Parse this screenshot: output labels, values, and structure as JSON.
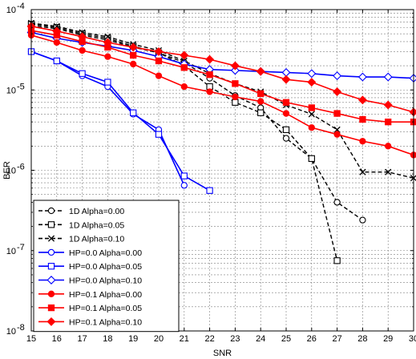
{
  "chart_data": {
    "type": "line",
    "title": "",
    "xlabel": "SNR",
    "ylabel": "BER",
    "xlim": [
      15,
      30
    ],
    "ylim": [
      1e-08,
      0.0001
    ],
    "yscale": "log",
    "xticks": [
      15,
      16,
      17,
      18,
      19,
      20,
      21,
      22,
      23,
      24,
      25,
      26,
      27,
      28,
      29,
      30
    ],
    "yticks": [
      {
        "value": 1e-08,
        "label": "10",
        "exp": "-8"
      },
      {
        "value": 1e-07,
        "label": "10",
        "exp": "-7"
      },
      {
        "value": 1e-06,
        "label": "10",
        "exp": "-6"
      },
      {
        "value": 1e-05,
        "label": "10",
        "exp": "-5"
      },
      {
        "value": 0.0001,
        "label": "10",
        "exp": "-4"
      }
    ],
    "grid": true,
    "legend_position": "bottom-left",
    "series": [
      {
        "name": "1D Alpha=0.00",
        "color": "#000000",
        "dash": true,
        "marker": "circle",
        "filled": false,
        "x": [
          15,
          16,
          17,
          18,
          19,
          20,
          21,
          22,
          23,
          24,
          25,
          26,
          27,
          28
        ],
        "y": [
          6.3e-05,
          5.8e-05,
          4.8e-05,
          4.2e-05,
          3.4e-05,
          2.9e-05,
          2.2e-05,
          1.4e-05,
          8.5e-06,
          6e-06,
          2.5e-06,
          1.4e-06,
          4e-07,
          2.4e-07
        ]
      },
      {
        "name": "1D Alpha=0.05",
        "color": "#000000",
        "dash": true,
        "marker": "square",
        "filled": false,
        "x": [
          15,
          16,
          17,
          18,
          19,
          20,
          21,
          22,
          23,
          24,
          25,
          26,
          27
        ],
        "y": [
          6.6e-05,
          6e-05,
          5e-05,
          4.4e-05,
          3.5e-05,
          2.9e-05,
          2e-05,
          1.1e-05,
          7e-06,
          5.2e-06,
          3.2e-06,
          1.4e-06,
          7.5e-08
        ]
      },
      {
        "name": "1D Alpha=0.10",
        "color": "#000000",
        "dash": true,
        "marker": "x",
        "filled": false,
        "x": [
          15,
          16,
          17,
          18,
          19,
          20,
          21,
          22,
          23,
          24,
          25,
          26,
          27,
          28,
          29,
          30
        ],
        "y": [
          6.8e-05,
          6.2e-05,
          5.2e-05,
          4.6e-05,
          3.7e-05,
          3.1e-05,
          2.3e-05,
          1.6e-05,
          1.2e-05,
          9.5e-06,
          6.5e-06,
          5e-06,
          3.2e-06,
          9.5e-07,
          9.5e-07,
          8e-07
        ]
      },
      {
        "name": "HP=0.0 Alpha=0.00",
        "color": "#0000ff",
        "dash": false,
        "marker": "circle",
        "filled": false,
        "x": [
          15,
          16,
          17,
          18,
          19,
          20,
          21
        ],
        "y": [
          3e-05,
          2.3e-05,
          1.5e-05,
          1.1e-05,
          5e-06,
          3.2e-06,
          6.5e-07
        ]
      },
      {
        "name": "HP=0.0 Alpha=0.05",
        "color": "#0000ff",
        "dash": false,
        "marker": "square",
        "filled": false,
        "x": [
          15,
          16,
          17,
          18,
          19,
          20,
          21,
          22
        ],
        "y": [
          3e-05,
          2.3e-05,
          1.6e-05,
          1.25e-05,
          5.2e-06,
          2.8e-06,
          8.5e-07,
          5.6e-07
        ]
      },
      {
        "name": "HP=0.0 Alpha=0.10",
        "color": "#0000ff",
        "dash": false,
        "marker": "diamond",
        "filled": false,
        "x": [
          15,
          16,
          17,
          18,
          19,
          20,
          21,
          22,
          23,
          24,
          25,
          26,
          27,
          28,
          29,
          30
        ],
        "y": [
          5.2e-05,
          4.4e-05,
          3.9e-05,
          3.5e-05,
          3.1e-05,
          2.6e-05,
          2.1e-05,
          1.8e-05,
          1.75e-05,
          1.7e-05,
          1.65e-05,
          1.6e-05,
          1.5e-05,
          1.45e-05,
          1.45e-05,
          1.4e-05
        ]
      },
      {
        "name": "HP=0.1 Alpha=0.00",
        "color": "#ff0000",
        "dash": false,
        "marker": "circle",
        "filled": true,
        "x": [
          15,
          16,
          17,
          18,
          19,
          20,
          21,
          22,
          23,
          24,
          25,
          26,
          27,
          28,
          29,
          30
        ],
        "y": [
          4.8e-05,
          3.9e-05,
          3.1e-05,
          2.6e-05,
          2.1e-05,
          1.5e-05,
          1.1e-05,
          9.5e-06,
          8.2e-06,
          7.2e-06,
          5.1e-06,
          3.4e-06,
          2.8e-06,
          2.3e-06,
          2e-06,
          1.55e-06
        ]
      },
      {
        "name": "HP=0.1 Alpha=0.05",
        "color": "#ff0000",
        "dash": false,
        "marker": "square",
        "filled": true,
        "x": [
          15,
          16,
          17,
          18,
          19,
          20,
          21,
          22,
          23,
          24,
          25,
          26,
          27,
          28,
          29,
          30
        ],
        "y": [
          5.5e-05,
          4.8e-05,
          4e-05,
          3.4e-05,
          2.7e-05,
          2.3e-05,
          1.9e-05,
          1.55e-05,
          1.2e-05,
          9e-06,
          7e-06,
          6e-06,
          5.1e-06,
          4.3e-06,
          4e-06,
          4e-06
        ]
      },
      {
        "name": "HP=0.1 Alpha=0.10",
        "color": "#ff0000",
        "dash": false,
        "marker": "diamond",
        "filled": true,
        "x": [
          15,
          16,
          17,
          18,
          19,
          20,
          21,
          22,
          23,
          24,
          25,
          26,
          27,
          28,
          29,
          30
        ],
        "y": [
          6.2e-05,
          5.4e-05,
          4.6e-05,
          3.9e-05,
          3.4e-05,
          3e-05,
          2.7e-05,
          2.4e-05,
          2e-05,
          1.7e-05,
          1.35e-05,
          1.25e-05,
          9.5e-06,
          7.5e-06,
          6.5e-06,
          5.3e-06
        ]
      }
    ]
  }
}
